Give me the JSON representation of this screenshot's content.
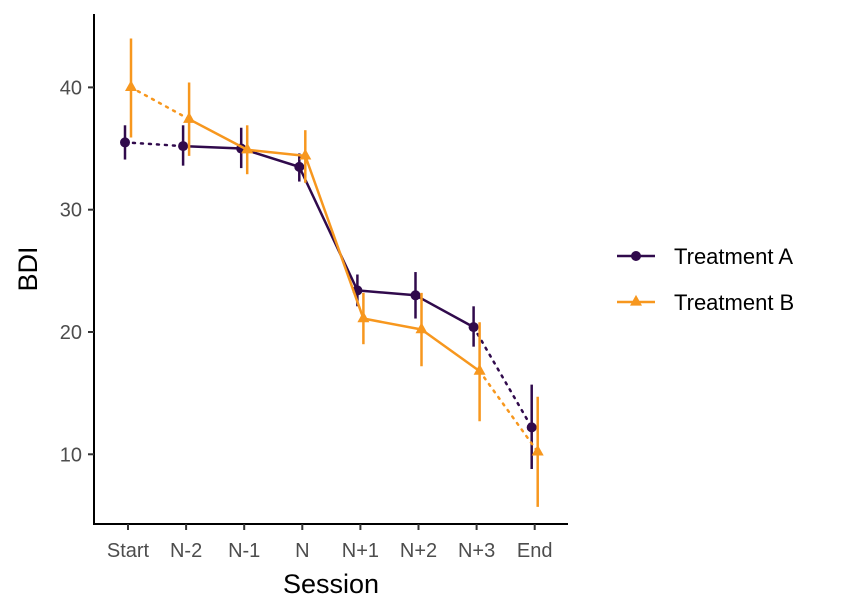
{
  "chart_data": {
    "type": "line",
    "categories": [
      "Start",
      "N-2",
      "N-1",
      "N",
      "N+1",
      "N+2",
      "N+3",
      "End"
    ],
    "xlabel": "Session",
    "ylabel": "BDI",
    "yticks": [
      10,
      20,
      30,
      40
    ],
    "ylim": [
      4.3,
      46
    ],
    "grid": false,
    "legend_position": "right",
    "series": [
      {
        "name": "Treatment A",
        "color": "#300a4c",
        "marker": "circle",
        "values": [
          35.5,
          35.2,
          35.0,
          33.5,
          23.4,
          23.0,
          20.4,
          12.2
        ],
        "err_low": [
          34.1,
          33.6,
          33.4,
          32.3,
          22.1,
          21.1,
          18.8,
          8.8
        ],
        "err_high": [
          36.9,
          36.9,
          36.7,
          34.6,
          24.7,
          24.9,
          22.1,
          15.7
        ],
        "dotted_segments": [
          0,
          6
        ]
      },
      {
        "name": "Treatment B",
        "color": "#f7971e",
        "marker": "triangle",
        "values": [
          40.0,
          37.4,
          34.9,
          34.4,
          21.1,
          20.2,
          16.8,
          10.2
        ],
        "err_low": [
          35.9,
          34.4,
          32.9,
          32.2,
          19.0,
          17.2,
          12.7,
          5.7
        ],
        "err_high": [
          44.0,
          40.4,
          36.9,
          36.5,
          23.2,
          23.2,
          20.8,
          14.7
        ],
        "dotted_segments": [
          0,
          6
        ]
      }
    ]
  }
}
